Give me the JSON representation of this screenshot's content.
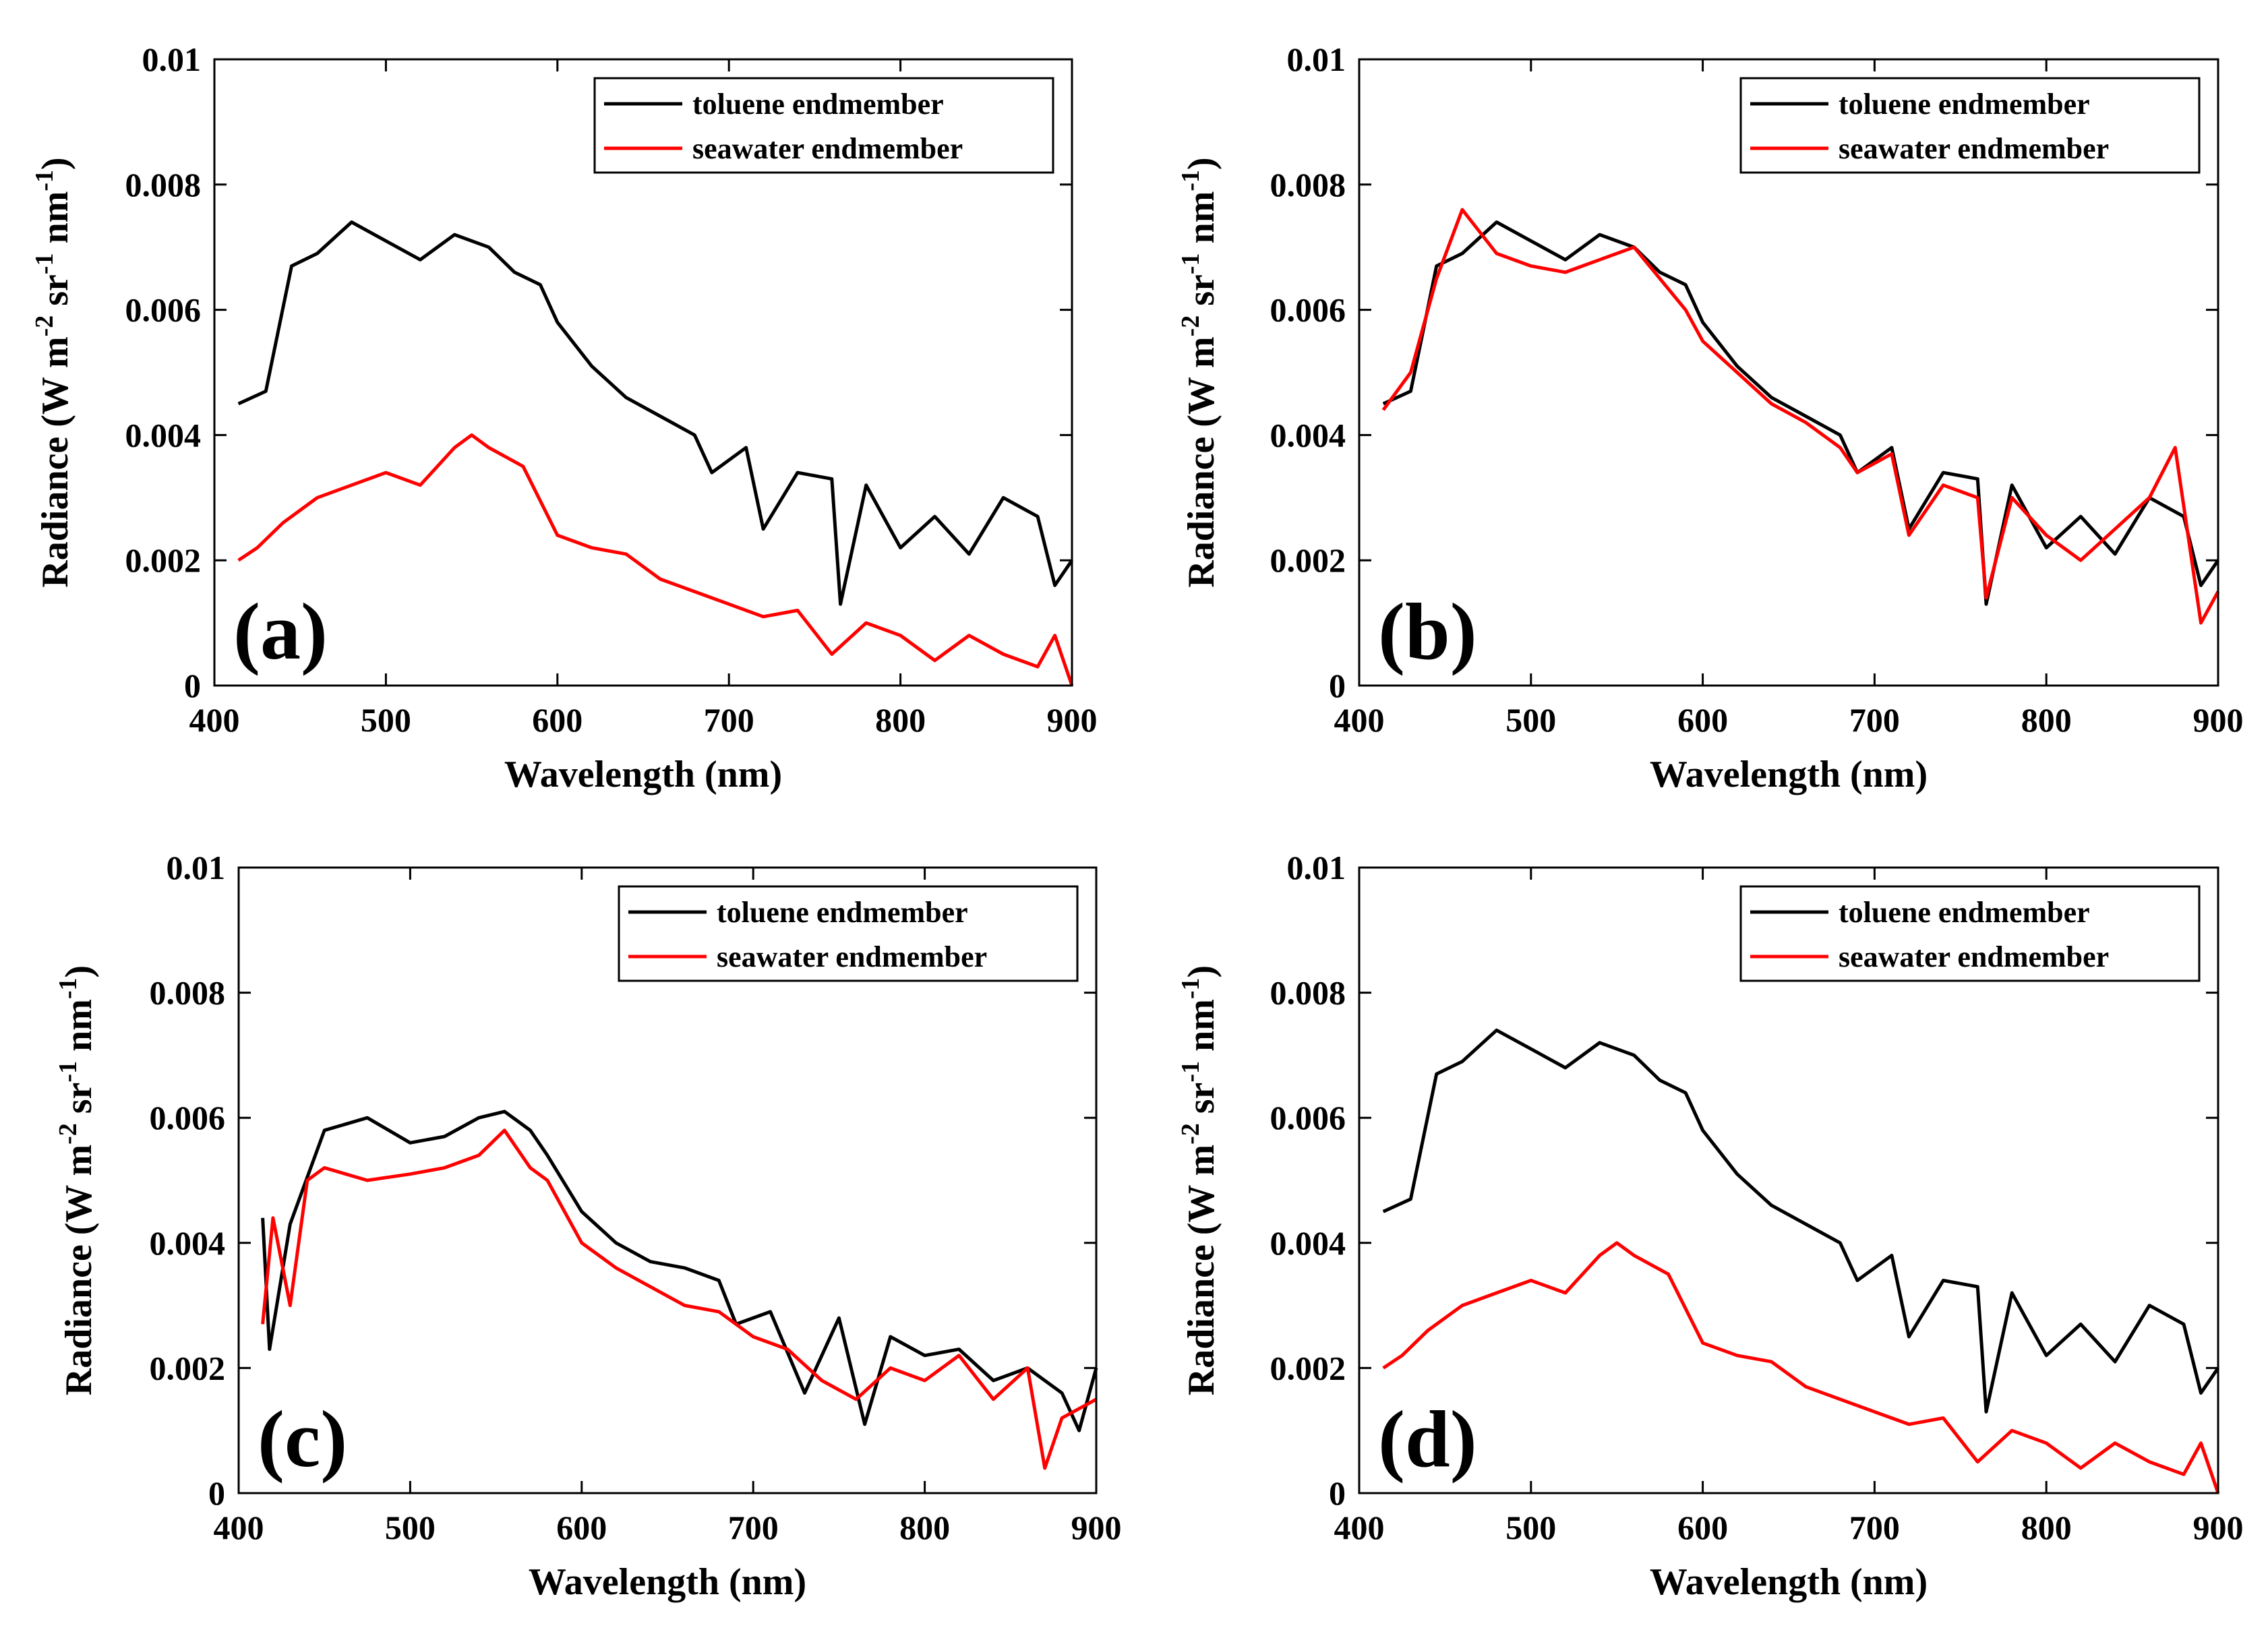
{
  "figure": {
    "panel_labels": [
      "(a)",
      "(b)",
      "(c)",
      "(d)"
    ]
  },
  "chart_data": [
    {
      "type": "line",
      "panel": "(a)",
      "xlabel": "Wavelength (nm)",
      "ylabel": "Radiance (W m-2 sr-1 nm-1)",
      "ylabel_parts": {
        "base": "Radiance (W m",
        "exp1": "-2",
        "mid": " sr",
        "exp2": "-1",
        "mid2": " nm",
        "exp3": "-1",
        "end": ")"
      },
      "xlim": [
        400,
        900
      ],
      "ylim": [
        0,
        0.01
      ],
      "xticks": [
        "400",
        "500",
        "600",
        "700",
        "800",
        "900"
      ],
      "yticks": [
        "0",
        "0.002",
        "0.004",
        "0.006",
        "0.008",
        "0.01"
      ],
      "legend_position": "top-right",
      "series": [
        {
          "name": "toluene endmember",
          "color": "#000000",
          "x": [
            414,
            430,
            445,
            460,
            480,
            500,
            520,
            540,
            560,
            575,
            590,
            600,
            620,
            640,
            660,
            680,
            690,
            710,
            720,
            740,
            760,
            765,
            780,
            800,
            820,
            840,
            860,
            880,
            890,
            900
          ],
          "y": [
            0.0045,
            0.0047,
            0.0067,
            0.0069,
            0.0074,
            0.0071,
            0.0068,
            0.0072,
            0.007,
            0.0066,
            0.0064,
            0.0058,
            0.0051,
            0.0046,
            0.0043,
            0.004,
            0.0034,
            0.0038,
            0.0025,
            0.0034,
            0.0033,
            0.0013,
            0.0032,
            0.0022,
            0.0027,
            0.0021,
            0.003,
            0.0027,
            0.0016,
            0.002
          ]
        },
        {
          "name": "seawater endmember",
          "color": "#ff0000",
          "x": [
            414,
            425,
            440,
            460,
            480,
            500,
            520,
            540,
            550,
            560,
            580,
            600,
            620,
            640,
            660,
            680,
            700,
            720,
            740,
            760,
            780,
            800,
            820,
            840,
            860,
            880,
            890,
            900
          ],
          "y": [
            0.002,
            0.0022,
            0.0026,
            0.003,
            0.0032,
            0.0034,
            0.0032,
            0.0038,
            0.004,
            0.0038,
            0.0035,
            0.0024,
            0.0022,
            0.0021,
            0.0017,
            0.0015,
            0.0013,
            0.0011,
            0.0012,
            0.0005,
            0.001,
            0.0008,
            0.0004,
            0.0008,
            0.0005,
            0.0003,
            0.0008,
            0.0
          ]
        }
      ]
    },
    {
      "type": "line",
      "panel": "(b)",
      "xlabel": "Wavelength (nm)",
      "ylabel": "Radiance (W m-2 sr-1 nm-1)",
      "ylabel_parts": {
        "base": "Radiance (W m",
        "exp1": "-2",
        "mid": " sr",
        "exp2": "-1",
        "mid2": " nm",
        "exp3": "-1",
        "end": ")"
      },
      "xlim": [
        400,
        900
      ],
      "ylim": [
        0,
        0.01
      ],
      "xticks": [
        "400",
        "500",
        "600",
        "700",
        "800",
        "900"
      ],
      "yticks": [
        "0",
        "0.002",
        "0.004",
        "0.006",
        "0.008",
        "0.01"
      ],
      "legend_position": "top-right",
      "series": [
        {
          "name": "toluene endmember",
          "color": "#000000",
          "x": [
            414,
            430,
            445,
            460,
            480,
            500,
            520,
            540,
            560,
            575,
            590,
            600,
            620,
            640,
            660,
            680,
            690,
            710,
            720,
            740,
            760,
            765,
            780,
            800,
            820,
            840,
            860,
            880,
            890,
            900
          ],
          "y": [
            0.0045,
            0.0047,
            0.0067,
            0.0069,
            0.0074,
            0.0071,
            0.0068,
            0.0072,
            0.007,
            0.0066,
            0.0064,
            0.0058,
            0.0051,
            0.0046,
            0.0043,
            0.004,
            0.0034,
            0.0038,
            0.0025,
            0.0034,
            0.0033,
            0.0013,
            0.0032,
            0.0022,
            0.0027,
            0.0021,
            0.003,
            0.0027,
            0.0016,
            0.002
          ]
        },
        {
          "name": "seawater endmember",
          "color": "#ff0000",
          "x": [
            414,
            430,
            445,
            460,
            480,
            500,
            520,
            540,
            560,
            575,
            590,
            600,
            620,
            640,
            660,
            680,
            690,
            710,
            720,
            740,
            760,
            765,
            780,
            800,
            820,
            840,
            860,
            875,
            890,
            900
          ],
          "y": [
            0.0044,
            0.005,
            0.0065,
            0.0076,
            0.0069,
            0.0067,
            0.0066,
            0.0068,
            0.007,
            0.0065,
            0.006,
            0.0055,
            0.005,
            0.0045,
            0.0042,
            0.0038,
            0.0034,
            0.0037,
            0.0024,
            0.0032,
            0.003,
            0.0014,
            0.003,
            0.0024,
            0.002,
            0.0025,
            0.003,
            0.0038,
            0.001,
            0.0015
          ]
        }
      ]
    },
    {
      "type": "line",
      "panel": "(c)",
      "xlabel": "Wavelength (nm)",
      "ylabel": "Radiance (W m-2 sr-1 nm-1)",
      "ylabel_parts": {
        "base": "Radiance (W m",
        "exp1": "-2",
        "mid": " sr",
        "exp2": "-1",
        "mid2": " nm",
        "exp3": "-1",
        "end": ")"
      },
      "xlim": [
        400,
        900
      ],
      "ylim": [
        0,
        0.01
      ],
      "xticks": [
        "400",
        "500",
        "600",
        "700",
        "800",
        "900"
      ],
      "yticks": [
        "0",
        "0.002",
        "0.004",
        "0.006",
        "0.008",
        "0.01"
      ],
      "legend_position": "top-right",
      "series": [
        {
          "name": "toluene endmember",
          "color": "#000000",
          "x": [
            414,
            418,
            430,
            450,
            475,
            500,
            520,
            540,
            555,
            570,
            580,
            600,
            620,
            640,
            660,
            680,
            690,
            710,
            730,
            750,
            765,
            780,
            800,
            820,
            840,
            860,
            880,
            890,
            900
          ],
          "y": [
            0.0044,
            0.0023,
            0.0043,
            0.0058,
            0.006,
            0.0056,
            0.0057,
            0.006,
            0.0061,
            0.0058,
            0.0054,
            0.0045,
            0.004,
            0.0037,
            0.0036,
            0.0034,
            0.0027,
            0.0029,
            0.0016,
            0.0028,
            0.0011,
            0.0025,
            0.0022,
            0.0023,
            0.0018,
            0.002,
            0.0016,
            0.001,
            0.002
          ]
        },
        {
          "name": "seawater endmember",
          "color": "#ff0000",
          "x": [
            414,
            420,
            430,
            440,
            450,
            475,
            500,
            520,
            540,
            555,
            570,
            580,
            600,
            620,
            640,
            660,
            680,
            700,
            720,
            740,
            760,
            780,
            800,
            820,
            840,
            860,
            870,
            880,
            900
          ],
          "y": [
            0.0027,
            0.0044,
            0.003,
            0.005,
            0.0052,
            0.005,
            0.0051,
            0.0052,
            0.0054,
            0.0058,
            0.0052,
            0.005,
            0.004,
            0.0036,
            0.0033,
            0.003,
            0.0029,
            0.0025,
            0.0023,
            0.0018,
            0.0015,
            0.002,
            0.0018,
            0.0022,
            0.0015,
            0.002,
            0.0004,
            0.0012,
            0.0015
          ]
        }
      ]
    },
    {
      "type": "line",
      "panel": "(d)",
      "xlabel": "Wavelength (nm)",
      "ylabel": "Radiance (W m-2 sr-1 nm-1)",
      "ylabel_parts": {
        "base": "Radiance (W m",
        "exp1": "-2",
        "mid": " sr",
        "exp2": "-1",
        "mid2": " nm",
        "exp3": "-1",
        "end": ")"
      },
      "xlim": [
        400,
        900
      ],
      "ylim": [
        0,
        0.01
      ],
      "xticks": [
        "400",
        "500",
        "600",
        "700",
        "800",
        "900"
      ],
      "yticks": [
        "0",
        "0.002",
        "0.004",
        "0.006",
        "0.008",
        "0.01"
      ],
      "legend_position": "top-right",
      "series": [
        {
          "name": "toluene endmember",
          "color": "#000000",
          "x": [
            414,
            430,
            445,
            460,
            480,
            500,
            520,
            540,
            560,
            575,
            590,
            600,
            620,
            640,
            660,
            680,
            690,
            710,
            720,
            740,
            760,
            765,
            780,
            800,
            820,
            840,
            860,
            880,
            890,
            900
          ],
          "y": [
            0.0045,
            0.0047,
            0.0067,
            0.0069,
            0.0074,
            0.0071,
            0.0068,
            0.0072,
            0.007,
            0.0066,
            0.0064,
            0.0058,
            0.0051,
            0.0046,
            0.0043,
            0.004,
            0.0034,
            0.0038,
            0.0025,
            0.0034,
            0.0033,
            0.0013,
            0.0032,
            0.0022,
            0.0027,
            0.0021,
            0.003,
            0.0027,
            0.0016,
            0.002
          ]
        },
        {
          "name": "seawater endmember",
          "color": "#ff0000",
          "x": [
            414,
            425,
            440,
            460,
            480,
            500,
            520,
            540,
            550,
            560,
            580,
            600,
            620,
            640,
            660,
            680,
            700,
            720,
            740,
            760,
            780,
            800,
            820,
            840,
            860,
            880,
            890,
            900
          ],
          "y": [
            0.002,
            0.0022,
            0.0026,
            0.003,
            0.0032,
            0.0034,
            0.0032,
            0.0038,
            0.004,
            0.0038,
            0.0035,
            0.0024,
            0.0022,
            0.0021,
            0.0017,
            0.0015,
            0.0013,
            0.0011,
            0.0012,
            0.0005,
            0.001,
            0.0008,
            0.0004,
            0.0008,
            0.0005,
            0.0003,
            0.0008,
            0.0
          ]
        }
      ]
    }
  ]
}
